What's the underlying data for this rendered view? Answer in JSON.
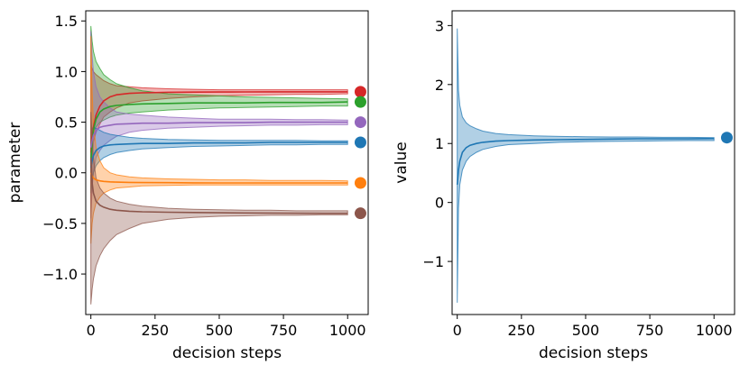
{
  "chart_data": [
    {
      "type": "line",
      "panel": "left",
      "xlabel": "decision steps",
      "ylabel": "parameter",
      "xlim": [
        -20,
        1080
      ],
      "ylim": [
        -1.4,
        1.6
      ],
      "xticks": [
        0,
        250,
        500,
        750,
        1000
      ],
      "xtick_labels": [
        "0",
        "250",
        "500",
        "750",
        "1000"
      ],
      "yticks": [
        -1.0,
        -0.5,
        0.0,
        0.5,
        1.0,
        1.5
      ],
      "ytick_labels": [
        "−1.0",
        "−0.5",
        "0.0",
        "0.5",
        "1.0",
        "1.5"
      ],
      "grid": false,
      "x": [
        0,
        5,
        10,
        20,
        35,
        50,
        75,
        100,
        150,
        200,
        300,
        400,
        500,
        600,
        700,
        800,
        900,
        1000
      ],
      "series": [
        {
          "name": "red",
          "color": "#d62728",
          "target": 0.8,
          "mean": [
            0.2,
            0.35,
            0.45,
            0.57,
            0.66,
            0.71,
            0.75,
            0.77,
            0.785,
            0.79,
            0.795,
            0.797,
            0.798,
            0.799,
            0.8,
            0.8,
            0.8,
            0.8
          ],
          "upper": [
            1.05,
            1.03,
            1.0,
            0.97,
            0.94,
            0.91,
            0.88,
            0.86,
            0.85,
            0.84,
            0.83,
            0.825,
            0.82,
            0.82,
            0.82,
            0.82,
            0.82,
            0.82
          ],
          "lower": [
            0.0,
            0.15,
            0.3,
            0.4,
            0.48,
            0.55,
            0.6,
            0.64,
            0.69,
            0.71,
            0.735,
            0.75,
            0.76,
            0.765,
            0.77,
            0.775,
            0.775,
            0.78
          ]
        },
        {
          "name": "green",
          "color": "#2ca02c",
          "target": 0.7,
          "mean": [
            0.12,
            0.3,
            0.42,
            0.53,
            0.6,
            0.63,
            0.655,
            0.665,
            0.675,
            0.68,
            0.685,
            0.69,
            0.69,
            0.69,
            0.695,
            0.695,
            0.695,
            0.7
          ],
          "upper": [
            1.45,
            1.3,
            1.2,
            1.1,
            1.03,
            0.97,
            0.92,
            0.88,
            0.84,
            0.81,
            0.78,
            0.77,
            0.76,
            0.75,
            0.745,
            0.74,
            0.735,
            0.73
          ],
          "lower": [
            0.0,
            0.3,
            0.4,
            0.45,
            0.5,
            0.52,
            0.55,
            0.57,
            0.59,
            0.6,
            0.62,
            0.63,
            0.64,
            0.645,
            0.65,
            0.655,
            0.66,
            0.66
          ]
        },
        {
          "name": "purple",
          "color": "#9467bd",
          "target": 0.5,
          "mean": [
            0.25,
            0.32,
            0.37,
            0.42,
            0.45,
            0.46,
            0.47,
            0.48,
            0.485,
            0.49,
            0.49,
            0.495,
            0.495,
            0.495,
            0.5,
            0.5,
            0.5,
            0.5
          ],
          "upper": [
            1.4,
            1.15,
            1.0,
            0.85,
            0.75,
            0.7,
            0.64,
            0.6,
            0.58,
            0.57,
            0.55,
            0.54,
            0.53,
            0.53,
            0.53,
            0.525,
            0.525,
            0.52
          ],
          "lower": [
            -0.45,
            -0.15,
            0.0,
            0.15,
            0.22,
            0.27,
            0.32,
            0.36,
            0.4,
            0.42,
            0.44,
            0.45,
            0.46,
            0.465,
            0.47,
            0.47,
            0.475,
            0.475
          ]
        },
        {
          "name": "blue",
          "color": "#1f77b4",
          "target": 0.3,
          "mean": [
            0.05,
            0.12,
            0.17,
            0.22,
            0.25,
            0.265,
            0.275,
            0.28,
            0.285,
            0.29,
            0.29,
            0.295,
            0.295,
            0.295,
            0.3,
            0.3,
            0.3,
            0.3
          ],
          "upper": [
            0.4,
            0.44,
            0.45,
            0.44,
            0.42,
            0.4,
            0.38,
            0.37,
            0.35,
            0.34,
            0.33,
            0.325,
            0.32,
            0.32,
            0.32,
            0.32,
            0.315,
            0.315
          ],
          "lower": [
            -0.2,
            -0.1,
            0.0,
            0.07,
            0.12,
            0.15,
            0.18,
            0.2,
            0.22,
            0.235,
            0.25,
            0.26,
            0.265,
            0.27,
            0.275,
            0.275,
            0.28,
            0.28
          ]
        },
        {
          "name": "orange",
          "color": "#ff7f0e",
          "target": -0.1,
          "mean": [
            0.0,
            -0.03,
            -0.05,
            -0.07,
            -0.08,
            -0.085,
            -0.09,
            -0.092,
            -0.095,
            -0.097,
            -0.098,
            -0.099,
            -0.1,
            -0.1,
            -0.1,
            -0.1,
            -0.1,
            -0.1
          ],
          "upper": [
            1.35,
            0.8,
            0.5,
            0.25,
            0.12,
            0.05,
            0.0,
            -0.02,
            -0.04,
            -0.05,
            -0.06,
            -0.065,
            -0.07,
            -0.07,
            -0.075,
            -0.075,
            -0.075,
            -0.08
          ],
          "lower": [
            -0.7,
            -0.5,
            -0.4,
            -0.3,
            -0.24,
            -0.2,
            -0.17,
            -0.15,
            -0.14,
            -0.13,
            -0.125,
            -0.12,
            -0.12,
            -0.12,
            -0.12,
            -0.12,
            -0.12,
            -0.12
          ]
        },
        {
          "name": "brown",
          "color": "#8c564b",
          "target": -0.4,
          "mean": [
            0.15,
            -0.1,
            -0.2,
            -0.28,
            -0.32,
            -0.34,
            -0.36,
            -0.37,
            -0.38,
            -0.385,
            -0.39,
            -0.392,
            -0.395,
            -0.397,
            -0.398,
            -0.399,
            -0.4,
            -0.4
          ],
          "upper": [
            0.6,
            0.35,
            0.15,
            -0.05,
            -0.15,
            -0.2,
            -0.25,
            -0.28,
            -0.31,
            -0.33,
            -0.35,
            -0.36,
            -0.365,
            -0.37,
            -0.37,
            -0.375,
            -0.375,
            -0.375
          ],
          "lower": [
            -1.3,
            -1.15,
            -1.05,
            -0.92,
            -0.82,
            -0.75,
            -0.67,
            -0.61,
            -0.55,
            -0.5,
            -0.46,
            -0.44,
            -0.43,
            -0.425,
            -0.42,
            -0.42,
            -0.415,
            -0.415
          ]
        }
      ],
      "targets_x": 1050
    },
    {
      "type": "line",
      "panel": "right",
      "xlabel": "decision steps",
      "ylabel": "value",
      "xlim": [
        -20,
        1080
      ],
      "ylim": [
        -1.9,
        3.25
      ],
      "xticks": [
        0,
        250,
        500,
        750,
        1000
      ],
      "xtick_labels": [
        "0",
        "250",
        "500",
        "750",
        "1000"
      ],
      "yticks": [
        -1,
        0,
        1,
        2,
        3
      ],
      "ytick_labels": [
        "−1",
        "0",
        "1",
        "2",
        "3"
      ],
      "grid": false,
      "x": [
        0,
        5,
        10,
        20,
        35,
        50,
        75,
        100,
        150,
        200,
        300,
        400,
        500,
        600,
        700,
        800,
        900,
        1000
      ],
      "series": [
        {
          "name": "blue",
          "color": "#1f77b4",
          "target": 1.1,
          "mean": [
            0.3,
            0.55,
            0.7,
            0.85,
            0.93,
            0.97,
            1.0,
            1.02,
            1.04,
            1.05,
            1.06,
            1.065,
            1.07,
            1.075,
            1.08,
            1.08,
            1.08,
            1.085
          ],
          "upper": [
            2.95,
            1.9,
            1.65,
            1.45,
            1.35,
            1.3,
            1.25,
            1.21,
            1.17,
            1.15,
            1.13,
            1.12,
            1.115,
            1.11,
            1.11,
            1.105,
            1.105,
            1.1
          ],
          "lower": [
            -1.7,
            -0.1,
            0.3,
            0.55,
            0.7,
            0.78,
            0.85,
            0.9,
            0.95,
            0.98,
            1.0,
            1.02,
            1.03,
            1.035,
            1.04,
            1.045,
            1.05,
            1.05
          ]
        }
      ],
      "targets_x": 1050
    }
  ]
}
